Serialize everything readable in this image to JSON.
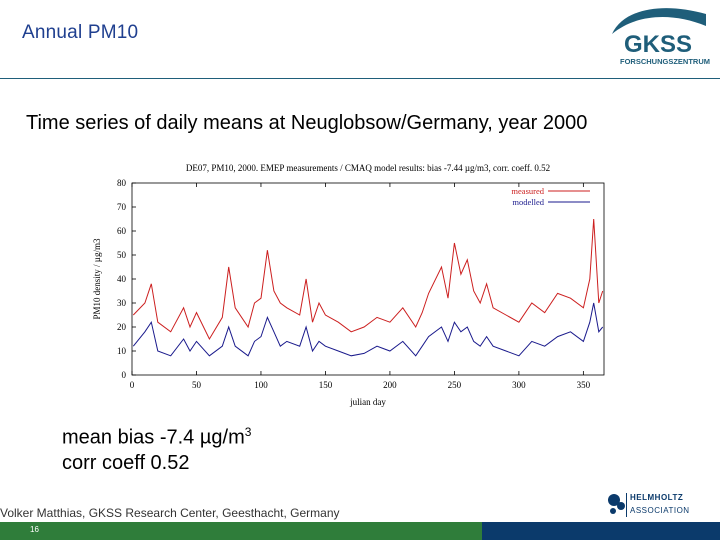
{
  "slide": {
    "title": "Annual PM10",
    "subtitle": "Time series of daily means at Neuglobsow/Germany, year 2000",
    "stats_line1_prefix": "mean bias -7.4 ",
    "stats_mu": "µ",
    "stats_line1_unit": "g/m",
    "stats_line1_sup": "3",
    "stats_line2": "corr coeff  0.52",
    "footer_author": "Volker Matthias, GKSS Research Center, Geesthacht, Germany",
    "page_number": "16"
  },
  "logos": {
    "gkss_text": "GKSS",
    "gkss_sub": "FORSCHUNGSZENTRUM",
    "helmholtz_line1": "HELMHOLTZ",
    "helmholtz_line2": "ASSOCIATION"
  },
  "colors": {
    "title": "#1f3f8f",
    "measured": "#cc1f1f",
    "modelled": "#1a1a8c",
    "footer_green": "#2f7d3a",
    "footer_blue": "#0b3a6b"
  },
  "chart_data": {
    "type": "line",
    "title": "DE07, PM10, 2000. EMEP measurements / CMAQ model results: bias -7.44 µg/m3, corr. coeff. 0.52",
    "xlabel": "julian day",
    "ylabel": "PM10 density / µg/m3",
    "xlim": [
      0,
      366
    ],
    "ylim": [
      0,
      80
    ],
    "xticks": [
      0,
      50,
      100,
      150,
      200,
      250,
      300,
      350
    ],
    "yticks": [
      0,
      10,
      20,
      30,
      40,
      50,
      60,
      70,
      80
    ],
    "legend": "top-right",
    "series": [
      {
        "name": "measured",
        "x": [
          1,
          10,
          15,
          20,
          30,
          40,
          45,
          50,
          60,
          70,
          75,
          80,
          90,
          95,
          100,
          105,
          110,
          115,
          120,
          130,
          135,
          140,
          145,
          150,
          160,
          170,
          180,
          190,
          200,
          210,
          220,
          225,
          230,
          240,
          245,
          250,
          255,
          260,
          265,
          270,
          275,
          280,
          290,
          300,
          310,
          320,
          330,
          340,
          350,
          355,
          358,
          362,
          365
        ],
        "y": [
          25,
          30,
          38,
          22,
          18,
          28,
          20,
          26,
          15,
          24,
          45,
          28,
          20,
          30,
          32,
          52,
          35,
          30,
          28,
          25,
          40,
          22,
          30,
          25,
          22,
          18,
          20,
          24,
          22,
          28,
          20,
          26,
          34,
          45,
          32,
          55,
          42,
          48,
          35,
          30,
          38,
          28,
          25,
          22,
          30,
          26,
          34,
          32,
          28,
          40,
          65,
          30,
          35
        ]
      },
      {
        "name": "modelled",
        "x": [
          1,
          10,
          15,
          20,
          30,
          40,
          45,
          50,
          60,
          70,
          75,
          80,
          90,
          95,
          100,
          105,
          110,
          115,
          120,
          130,
          135,
          140,
          145,
          150,
          160,
          170,
          180,
          190,
          200,
          210,
          220,
          225,
          230,
          240,
          245,
          250,
          255,
          260,
          265,
          270,
          275,
          280,
          290,
          300,
          310,
          320,
          330,
          340,
          350,
          355,
          358,
          362,
          365
        ],
        "y": [
          12,
          18,
          22,
          10,
          8,
          15,
          10,
          14,
          8,
          12,
          20,
          12,
          8,
          14,
          16,
          24,
          18,
          12,
          14,
          12,
          20,
          10,
          14,
          12,
          10,
          8,
          9,
          12,
          10,
          14,
          8,
          12,
          16,
          20,
          14,
          22,
          18,
          20,
          14,
          12,
          16,
          12,
          10,
          8,
          14,
          12,
          16,
          18,
          14,
          22,
          30,
          18,
          20
        ]
      }
    ]
  }
}
